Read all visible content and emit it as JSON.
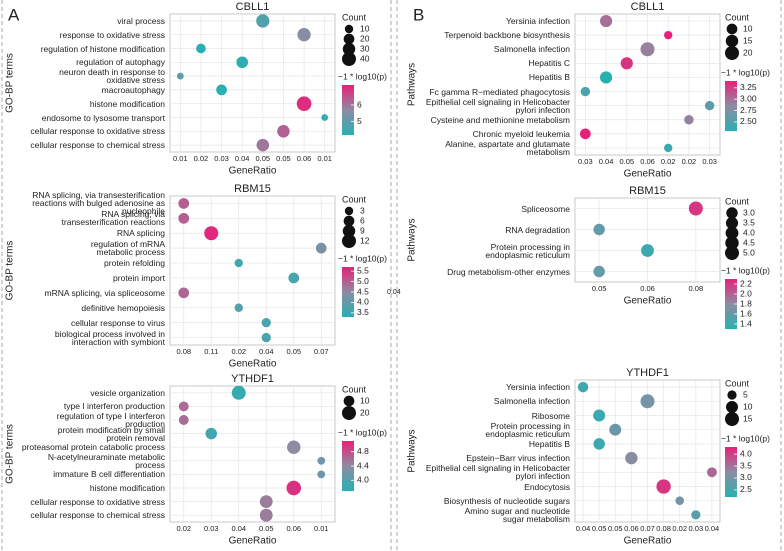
{
  "panel_labels": [
    "A",
    "B"
  ],
  "chart_data": [
    {
      "type": "bubble",
      "title": "CBLL1",
      "x_label": "GeneRatio",
      "y_label": "GO-BP terms",
      "categories": [
        "viral process",
        "response to oxidative stress",
        "regulation of histone modification",
        "regulation of autophagy",
        "neuron death in response to\noxidative stress",
        "macroautophagy",
        "histone modification",
        "endosome to lysosome transport",
        "cellular response to oxidative stress",
        "cellular response to chemical stress"
      ],
      "x": [
        "0.05",
        "0.06",
        "0.02",
        "0.04",
        "0.01",
        "0.03",
        "0.06",
        "0.01",
        "0.05",
        "0.05"
      ],
      "sizes": [
        35,
        35,
        15,
        25,
        5,
        20,
        45,
        5,
        30,
        30
      ],
      "color_values": [
        4.8,
        5.6,
        4.2,
        4.3,
        5.0,
        4.3,
        7.0,
        4.3,
        6.3,
        6.0
      ],
      "xticks": [
        "0.01",
        "0.02",
        "0.03",
        "0.04",
        "0.05",
        "0.05",
        "0.06",
        "0.01"
      ],
      "size_legend": {
        "title": "Count",
        "ticks": [
          10,
          20,
          30,
          40
        ]
      },
      "color_legend": {
        "title": "−1 * log10(p)",
        "lim": [
          4.2,
          7.2
        ],
        "ticks": [
          5,
          6
        ]
      },
      "color_scale": [
        "#27b0b2",
        "#8e8ba3",
        "#e8207a"
      ]
    },
    {
      "type": "bubble",
      "title": "RBM15",
      "x_label": "GeneRatio",
      "y_label": "GO-BP terms",
      "categories": [
        "RNA splicing, via transesterification\nreactions with bulged adenosine as\nnucleophile",
        "RNA splicing, via\ntransesterification reactions",
        "RNA splicing",
        "regulation of mRNA\nmetabolic process",
        "protein refolding",
        "protein import",
        "mRNA splicing, via spliceosome",
        "definitive hemopoiesis",
        "cellular response to virus",
        "biological process involved in\ninteraction with symbiont"
      ],
      "x": [
        "0.08",
        "0.08",
        "0.11",
        "0.07",
        "0.02",
        "0.05",
        "0.08",
        "0.02",
        "0.04",
        "0.04"
      ],
      "sizes": [
        6,
        6,
        12,
        6,
        3,
        6,
        6,
        3,
        4,
        4
      ],
      "color_values": [
        5.0,
        5.0,
        5.6,
        4.3,
        3.6,
        3.7,
        4.9,
        3.8,
        3.7,
        3.7
      ],
      "xticks": [
        "0.08",
        "0.11",
        "0.02",
        "0.04",
        "0.05",
        "0.07"
      ],
      "size_legend": {
        "title": "Count",
        "ticks": [
          3,
          6,
          9,
          12
        ]
      },
      "color_legend": {
        "title": "−1 * log10(p)",
        "lim": [
          3.3,
          5.7
        ],
        "ticks": [
          3.5,
          {
            "value": 4,
            "label": "4.0"
          },
          4.5,
          {
            "value": 5,
            "label": "5.0"
          },
          5.5
        ]
      },
      "annotation": "0.04",
      "color_scale": [
        "#27b0b2",
        "#8e8ba3",
        "#e8207a"
      ]
    },
    {
      "type": "bubble",
      "title": "YTHDF1",
      "x_label": "GeneRatio",
      "y_label": "GO-BP terms",
      "categories": [
        "vesicle organization",
        "type I interferon production",
        "regulation of type I interferon\nproduction",
        "protein modification by small\nprotein removal",
        "proteasomal protein catabolic process",
        "N-acetylneuraminate metabolic\nprocess",
        "immature B cell differentiation",
        "histone modification",
        "cellular response to oxidative stress",
        "cellular response to chemical stress"
      ],
      "x": [
        "0.04",
        "0.02",
        "0.02",
        "0.03",
        "0.06",
        "0.01",
        "0.01",
        "0.06",
        "0.05",
        "0.05"
      ],
      "sizes": [
        20,
        8,
        8,
        12,
        18,
        4,
        4,
        22,
        16,
        16
      ],
      "color_values": [
        3.8,
        4.6,
        4.6,
        3.9,
        4.4,
        4.2,
        4.2,
        5.0,
        4.5,
        4.5
      ],
      "xticks": [
        "0.02",
        "0.03",
        "0.04",
        "0.05",
        "0.06",
        "0.01"
      ],
      "size_legend": {
        "title": "Count",
        "ticks": [
          10,
          20
        ]
      },
      "color_legend": {
        "title": "−1 * log10(p)",
        "lim": [
          3.7,
          5.1
        ],
        "ticks": [
          {
            "value": 4,
            "label": "4.0"
          },
          4.4,
          4.8
        ]
      },
      "color_scale": [
        "#27b0b2",
        "#8e8ba3",
        "#e8207a"
      ]
    },
    {
      "type": "bubble",
      "title": "CBLL1",
      "x_label": "GeneRatio",
      "y_label": "Pathways",
      "categories": [
        "Yersinia infection",
        "Terpenoid backbone biosynthesis",
        "Salmonella infection",
        "Hepatitis C",
        "Hepatitis B",
        "Fc gamma R−mediated phagocytosis",
        "Epithelial cell signaling in Helicobacter\npylori infection",
        "Cysteine and methionine metabolism",
        "Chronic myeloid leukemia",
        "Alanine, aspartate and glutamate\nmetabolism"
      ],
      "x": [
        "0.04",
        "0.02",
        "0.06",
        "0.05",
        "0.04",
        "0.03",
        "0.03",
        "0.02",
        "0.03",
        "0.02"
      ],
      "sizes": [
        14,
        5,
        20,
        14,
        14,
        7,
        7,
        7,
        10,
        5
      ],
      "color_values": [
        3.0,
        3.4,
        2.9,
        3.3,
        2.3,
        2.5,
        2.6,
        2.9,
        3.4,
        2.4
      ],
      "xticks": [
        "0.03",
        "0.04",
        "0.05",
        "0.06",
        "0.02",
        "0.02",
        "0.03"
      ],
      "size_legend": {
        "title": "Count",
        "ticks": [
          10,
          15,
          20
        ]
      },
      "color_legend": {
        "title": "−1 * log10(p)",
        "lim": [
          2.3,
          3.4
        ],
        "ticks": [
          {
            "value": 2.5,
            "label": "2.50"
          },
          2.75,
          {
            "value": 3,
            "label": "3.00"
          },
          3.25
        ]
      },
      "color_scale": [
        "#27b0b2",
        "#8e8ba3",
        "#e8207a"
      ]
    },
    {
      "type": "bubble",
      "title": "RBM15",
      "x_label": "GeneRatio",
      "y_label": "Pathways",
      "categories": [
        "Spliceosome",
        "RNA degradation",
        "Protein processing in\nendoplasmic reticulum",
        "Drug metabolism-other enzymes"
      ],
      "x": [
        "0.08",
        "0.05",
        "0.06",
        "0.05"
      ],
      "sizes": [
        5,
        3,
        4,
        3
      ],
      "color_values": [
        2.2,
        1.6,
        1.4,
        1.6
      ],
      "xticks": [
        "0.05",
        "0.06",
        "0.08"
      ],
      "size_legend": {
        "title": "Count",
        "ticks": [
          {
            "value": 3,
            "label": "3.0"
          },
          3.5,
          {
            "value": 4,
            "label": "4.0"
          },
          4.5,
          {
            "value": 5,
            "label": "5.0"
          }
        ]
      },
      "color_legend": {
        "title": "−1 * log10(p)",
        "lim": [
          1.3,
          2.3
        ],
        "ticks": [
          1.4,
          1.6,
          1.8,
          {
            "value": 2,
            "label": "2.0"
          },
          2.2
        ]
      },
      "color_scale": [
        "#27b0b2",
        "#8e8ba3",
        "#e8207a"
      ]
    },
    {
      "type": "bubble",
      "title": "YTHDF1",
      "x_label": "GeneRatio",
      "y_label": "Pathways",
      "categories": [
        "Yersinia infection",
        "Salmonella infection",
        "Ribosome",
        "Protein processing in\nendoplasmic reticulum",
        "Hepatitis B",
        "Epstein−Barr virus infection",
        "Epithelial cell signaling in Helicobacter\npylori infection",
        "Endocytosis",
        "Biosynthesis of nucleotide sugars",
        "Amino sugar and nucleotide\nsugar metabolism"
      ],
      "x": [
        "0.04",
        "0.07",
        "0.05",
        "0.05",
        "0.05",
        "0.06",
        "0.04",
        "0.08",
        "0.02",
        "0.03"
      ],
      "sizes": [
        7,
        15,
        10,
        10,
        9,
        11,
        6,
        16,
        4,
        5
      ],
      "color_values": [
        2.4,
        3.0,
        2.4,
        2.9,
        2.4,
        3.2,
        3.6,
        4.1,
        3.0,
        2.7
      ],
      "xticks": [
        "0.04",
        "0.05",
        "0.05",
        "0.06",
        "0.07",
        "0.08",
        "0.02",
        "0.03",
        "0.04"
      ],
      "size_legend": {
        "title": "Count",
        "ticks": [
          5,
          10,
          15
        ]
      },
      "color_legend": {
        "title": "−1 * log10(p)",
        "lim": [
          2.2,
          4.3
        ],
        "ticks": [
          2.5,
          {
            "value": 3,
            "label": "3.0"
          },
          3.5,
          {
            "value": 4,
            "label": "4.0"
          }
        ]
      },
      "color_scale": [
        "#27b0b2",
        "#8e8ba3",
        "#e8207a"
      ]
    }
  ]
}
